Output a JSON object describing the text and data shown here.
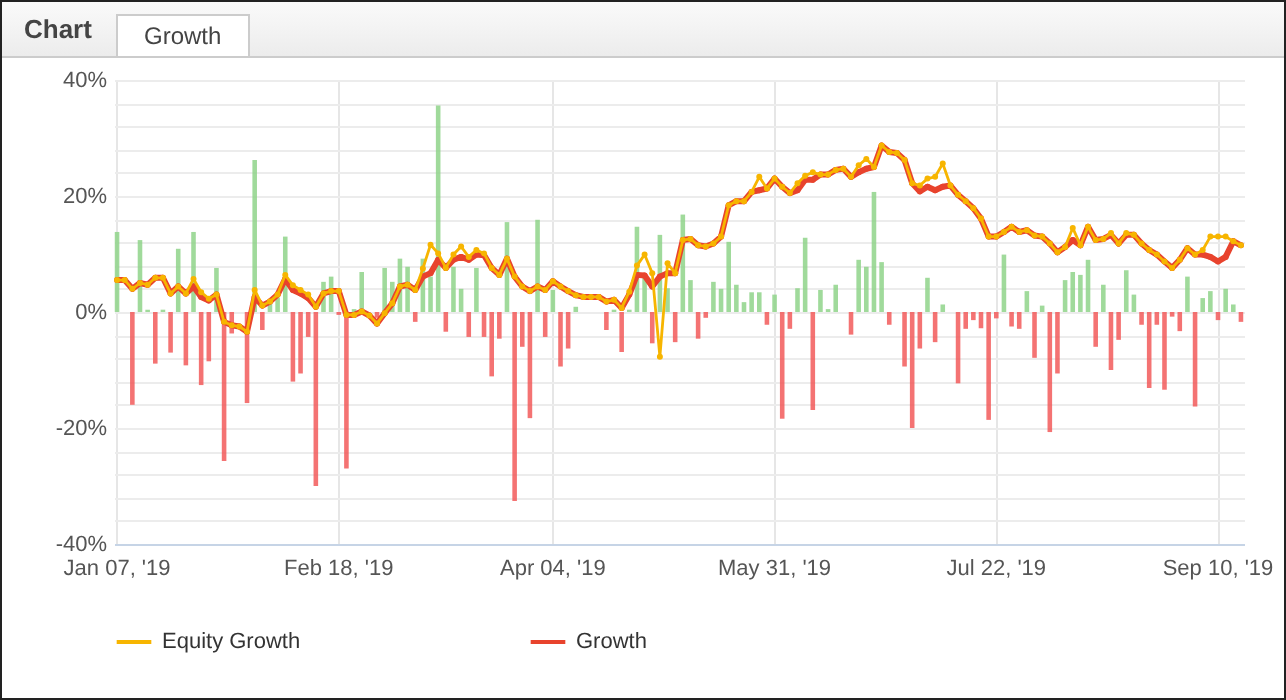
{
  "chart_data": {
    "type": "bar",
    "title": "Chart",
    "subtitle": "Growth",
    "categories": [
      "Jan 07, '19",
      null,
      null,
      null,
      null,
      null,
      null,
      null,
      null,
      null,
      null,
      null,
      null,
      null,
      null,
      null,
      null,
      null,
      null,
      null,
      null,
      null,
      null,
      null,
      null,
      null,
      null,
      null,
      null,
      "Feb 18, '19",
      null,
      null,
      null,
      null,
      null,
      null,
      null,
      null,
      null,
      null,
      null,
      null,
      null,
      null,
      null,
      null,
      null,
      null,
      null,
      null,
      null,
      null,
      null,
      null,
      null,
      null,
      null,
      "Apr 04, '19",
      null,
      null,
      null,
      null,
      null,
      null,
      null,
      null,
      null,
      null,
      null,
      null,
      null,
      null,
      null,
      null,
      null,
      null,
      null,
      null,
      null,
      null,
      null,
      null,
      null,
      null,
      null,
      null,
      "May 31, '19",
      null,
      null,
      null,
      null,
      null,
      null,
      null,
      null,
      null,
      null,
      null,
      null,
      null,
      null,
      null,
      null,
      null,
      null,
      null,
      null,
      null,
      null,
      null,
      null,
      null,
      null,
      null,
      null,
      "Jul 22, '19",
      null,
      null,
      null,
      null,
      null,
      null,
      null,
      null,
      null,
      null,
      null,
      null,
      null,
      null,
      null,
      null,
      null,
      null,
      null,
      null,
      null,
      null,
      null,
      null,
      null,
      null,
      null,
      null,
      "Sep 10, '19",
      null,
      null,
      null
    ],
    "series": [
      {
        "color": "#8fd48a",
        "values": [
          13.8,
          null,
          null,
          12.4,
          0.4,
          null,
          0.4,
          null,
          10.9,
          null,
          13.8,
          null,
          null,
          7.6,
          null,
          null,
          null,
          null,
          26.2,
          null,
          2,
          2.5,
          13,
          null,
          null,
          null,
          null,
          5.2,
          6.1,
          null,
          null,
          0.5,
          6.9,
          null,
          null,
          7.6,
          5.2,
          9.2,
          7.8,
          null,
          9.2,
          6.1,
          35.6,
          null,
          7.8,
          4,
          null,
          7.6,
          null,
          null,
          null,
          15.5,
          null,
          null,
          null,
          15.9,
          null,
          3.8,
          null,
          null,
          0.9,
          null,
          null,
          null,
          null,
          0.4,
          null,
          0.4,
          14.7,
          6.4,
          null,
          13.3,
          4.1,
          null,
          16.8,
          5.5,
          null,
          null,
          5.2,
          4,
          12.1,
          4.7,
          1.7,
          3.4,
          3.4,
          null,
          3,
          null,
          null,
          4.1,
          12.8,
          null,
          3.8,
          0.5,
          4.7,
          null,
          null,
          9,
          7.8,
          20.7,
          8.6,
          null,
          null,
          null,
          null,
          null,
          5.9,
          null,
          1.3,
          null,
          null,
          null,
          null,
          null,
          null,
          null,
          9.9,
          null,
          null,
          3.6,
          null,
          1.1,
          null,
          null,
          5.5,
          6.9,
          6.4,
          9,
          null,
          4.7,
          null,
          null,
          7.2,
          3,
          null,
          null,
          null,
          null,
          null,
          null,
          6.1,
          null,
          2.4,
          3.6,
          null,
          4,
          1.3,
          null
        ]
      },
      {
        "color": "#f25a5a",
        "values": [
          null,
          null,
          -16,
          null,
          null,
          -8.9,
          null,
          -7,
          null,
          -9.2,
          null,
          -12.6,
          -8.5,
          null,
          -25.7,
          -3.7,
          null,
          -15.7,
          null,
          -3.1,
          null,
          null,
          null,
          -12,
          -10.6,
          -4.3,
          -30,
          null,
          null,
          -0.5,
          -27,
          null,
          null,
          null,
          -1,
          null,
          null,
          null,
          null,
          -1.7,
          null,
          null,
          null,
          -3.4,
          null,
          null,
          -4.3,
          null,
          -4.3,
          -11.1,
          -4.6,
          null,
          -32.6,
          -6,
          -18.3,
          null,
          -4.3,
          null,
          -9.4,
          -6.3,
          null,
          null,
          null,
          null,
          -3.1,
          null,
          -6.9,
          null,
          null,
          null,
          -5.4,
          null,
          null,
          -5.2,
          null,
          null,
          -4.6,
          -1,
          null,
          null,
          null,
          null,
          null,
          null,
          null,
          -2.2,
          null,
          -18.4,
          -2.9,
          null,
          null,
          -16.9,
          null,
          null,
          null,
          null,
          -3.9,
          null,
          null,
          null,
          null,
          -2.2,
          null,
          -9.4,
          -20,
          -6.3,
          null,
          -5.2,
          null,
          null,
          -12.3,
          -2.9,
          -1.4,
          -2.8,
          -18.6,
          -1.1,
          null,
          -2.5,
          -2.9,
          null,
          -7.9,
          null,
          -20.7,
          -10.6,
          null,
          null,
          null,
          null,
          -6,
          null,
          -10,
          -4.8,
          null,
          null,
          -2.2,
          -13.1,
          -2.2,
          -13.4,
          -0.8,
          -3.3,
          null,
          -16.3,
          null,
          null,
          -1.4,
          null,
          null,
          -1.7
        ]
      },
      {
        "type": "line",
        "name": "Equity Growth",
        "color": "#f7b500",
        "values": [
          5.5,
          5.5,
          4,
          5,
          4.7,
          5.9,
          5.9,
          3.2,
          4.4,
          3.2,
          5.7,
          3.4,
          2.3,
          3,
          -1.7,
          -2.3,
          -2.5,
          -3.4,
          3.8,
          1.1,
          1.8,
          3,
          6.4,
          4.6,
          3.8,
          3,
          0.9,
          3.2,
          3.6,
          3.6,
          -0.5,
          -0.5,
          0.1,
          -0.6,
          -2,
          -0.2,
          1.5,
          4.4,
          4.7,
          3.8,
          7.5,
          11.6,
          10.1,
          7.6,
          9.9,
          11.3,
          9.5,
          10.7,
          10.1,
          7.6,
          6.4,
          9.2,
          6.1,
          4.4,
          3.6,
          4.4,
          3.8,
          5.3,
          4.4,
          3.6,
          2.9,
          2.6,
          2.6,
          2.6,
          1.8,
          2.1,
          0.7,
          3.5,
          8,
          9.9,
          6.7,
          -7.7,
          8.4,
          6.7,
          12.4,
          12.6,
          11.5,
          11.3,
          11.8,
          13,
          18.4,
          19.1,
          19.1,
          20.7,
          23.3,
          21.3,
          23,
          21.6,
          20.5,
          22.2,
          23.5,
          24.1,
          23.7,
          23.7,
          24.5,
          24.7,
          23.3,
          25.3,
          26.4,
          25,
          28.7,
          27.6,
          27.4,
          26.2,
          22.2,
          21.8,
          23,
          23.3,
          25.6,
          21.8,
          20.2,
          19.1,
          17.9,
          16.1,
          13,
          13,
          13.8,
          14.7,
          13.8,
          14.1,
          13.2,
          13,
          11.8,
          10.3,
          11.2,
          14.5,
          11.5,
          14.7,
          12.4,
          12.6,
          13.6,
          11.8,
          13.6,
          13.3,
          11.8,
          10.7,
          9.9,
          8.7,
          7.6,
          9,
          11,
          9.9,
          10.7,
          13,
          13,
          13,
          12.2,
          11.5
        ]
      },
      {
        "type": "line",
        "name": "Growth",
        "color": "#e8432d",
        "values": [
          5.5,
          5.5,
          4,
          5,
          4.7,
          5.9,
          5.9,
          3.2,
          4.4,
          3.2,
          4.4,
          2.6,
          2,
          3,
          -1.7,
          -2.3,
          -2.5,
          -3.4,
          2.6,
          1.1,
          1.8,
          3,
          5.7,
          3.8,
          3.2,
          2.4,
          0.9,
          3.2,
          3.6,
          3.6,
          -0.5,
          -0.5,
          0.1,
          -0.6,
          -2,
          -0.2,
          1.5,
          4.4,
          4.7,
          3.8,
          6.1,
          6.7,
          9,
          7.6,
          9,
          9.5,
          9,
          9.9,
          9.8,
          7.6,
          6.4,
          9.2,
          6.1,
          4.4,
          3.6,
          4.4,
          3.8,
          5.3,
          4.4,
          3.6,
          2.9,
          2.6,
          2.6,
          2.6,
          1.8,
          2.1,
          0.7,
          3,
          6.4,
          6.3,
          4.4,
          6.1,
          6.7,
          6.7,
          12.4,
          12.6,
          11.5,
          11.3,
          11.8,
          13,
          18.4,
          19.1,
          19.1,
          20.7,
          21,
          21.3,
          23,
          21.6,
          20.5,
          21,
          22.8,
          22.8,
          23.7,
          23.7,
          24.5,
          24.7,
          23.3,
          24.1,
          24.7,
          25,
          28.7,
          27.6,
          27.4,
          26.2,
          22.2,
          20.8,
          21.6,
          21,
          21.6,
          21.8,
          20.2,
          19.1,
          17.9,
          16.1,
          13,
          13,
          13.8,
          14.7,
          13.8,
          14.1,
          13.2,
          13,
          11.8,
          10.3,
          11.2,
          12.4,
          11.5,
          14.7,
          12.4,
          12.6,
          13.3,
          11.8,
          13.3,
          13.3,
          11.8,
          10.7,
          9.9,
          8.7,
          7.6,
          9,
          11,
          9.9,
          9.9,
          9.5,
          8.7,
          9.5,
          12.2,
          11.5
        ]
      }
    ],
    "ylim": [
      -40,
      40
    ],
    "yticks": [
      {
        "value": -40,
        "label": "-40%"
      },
      {
        "value": -36,
        "label": null
      },
      {
        "value": -32,
        "label": null
      },
      {
        "value": -28,
        "label": null
      },
      {
        "value": -24,
        "label": null
      },
      {
        "value": -20,
        "label": "-20%"
      },
      {
        "value": -16,
        "label": null
      },
      {
        "value": -12,
        "label": null
      },
      {
        "value": -8,
        "label": null
      },
      {
        "value": -4,
        "label": null
      },
      {
        "value": 0,
        "label": "0%"
      },
      {
        "value": 4,
        "label": null
      },
      {
        "value": 8,
        "label": null
      },
      {
        "value": 12,
        "label": null
      },
      {
        "value": 16,
        "label": null
      },
      {
        "value": 20,
        "label": "20%"
      },
      {
        "value": 24,
        "label": null
      },
      {
        "value": 28,
        "label": null
      },
      {
        "value": 32,
        "label": null
      },
      {
        "value": 36,
        "label": null
      },
      {
        "value": 40,
        "label": "40%"
      }
    ],
    "grid": true,
    "legend": "bottom",
    "marker": "circle",
    "line_style": "solid"
  }
}
